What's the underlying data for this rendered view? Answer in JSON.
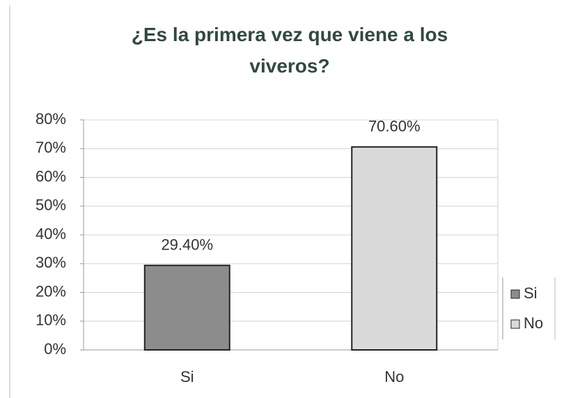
{
  "chart_data": {
    "type": "bar",
    "title": "¿Es la primera vez que viene a los viveros?",
    "categories": [
      "Si",
      "No"
    ],
    "series": [
      {
        "name": "Si",
        "color": "#8c8c8c",
        "values": [
          29.4,
          null
        ],
        "value_labels": [
          "29.40%",
          null
        ]
      },
      {
        "name": "No",
        "color": "#dadada",
        "values": [
          null,
          70.6
        ],
        "value_labels": [
          null,
          "70.60%"
        ]
      }
    ],
    "ylim": [
      0,
      80
    ],
    "yticks": [
      {
        "value": 0,
        "label": "0%"
      },
      {
        "value": 10,
        "label": "10%"
      },
      {
        "value": 20,
        "label": "20%"
      },
      {
        "value": 30,
        "label": "30%"
      },
      {
        "value": 40,
        "label": "40%"
      },
      {
        "value": 50,
        "label": "50%"
      },
      {
        "value": 60,
        "label": "60%"
      },
      {
        "value": 70,
        "label": "70%"
      },
      {
        "value": 80,
        "label": "80%"
      }
    ],
    "grid": true,
    "legend": "right"
  }
}
